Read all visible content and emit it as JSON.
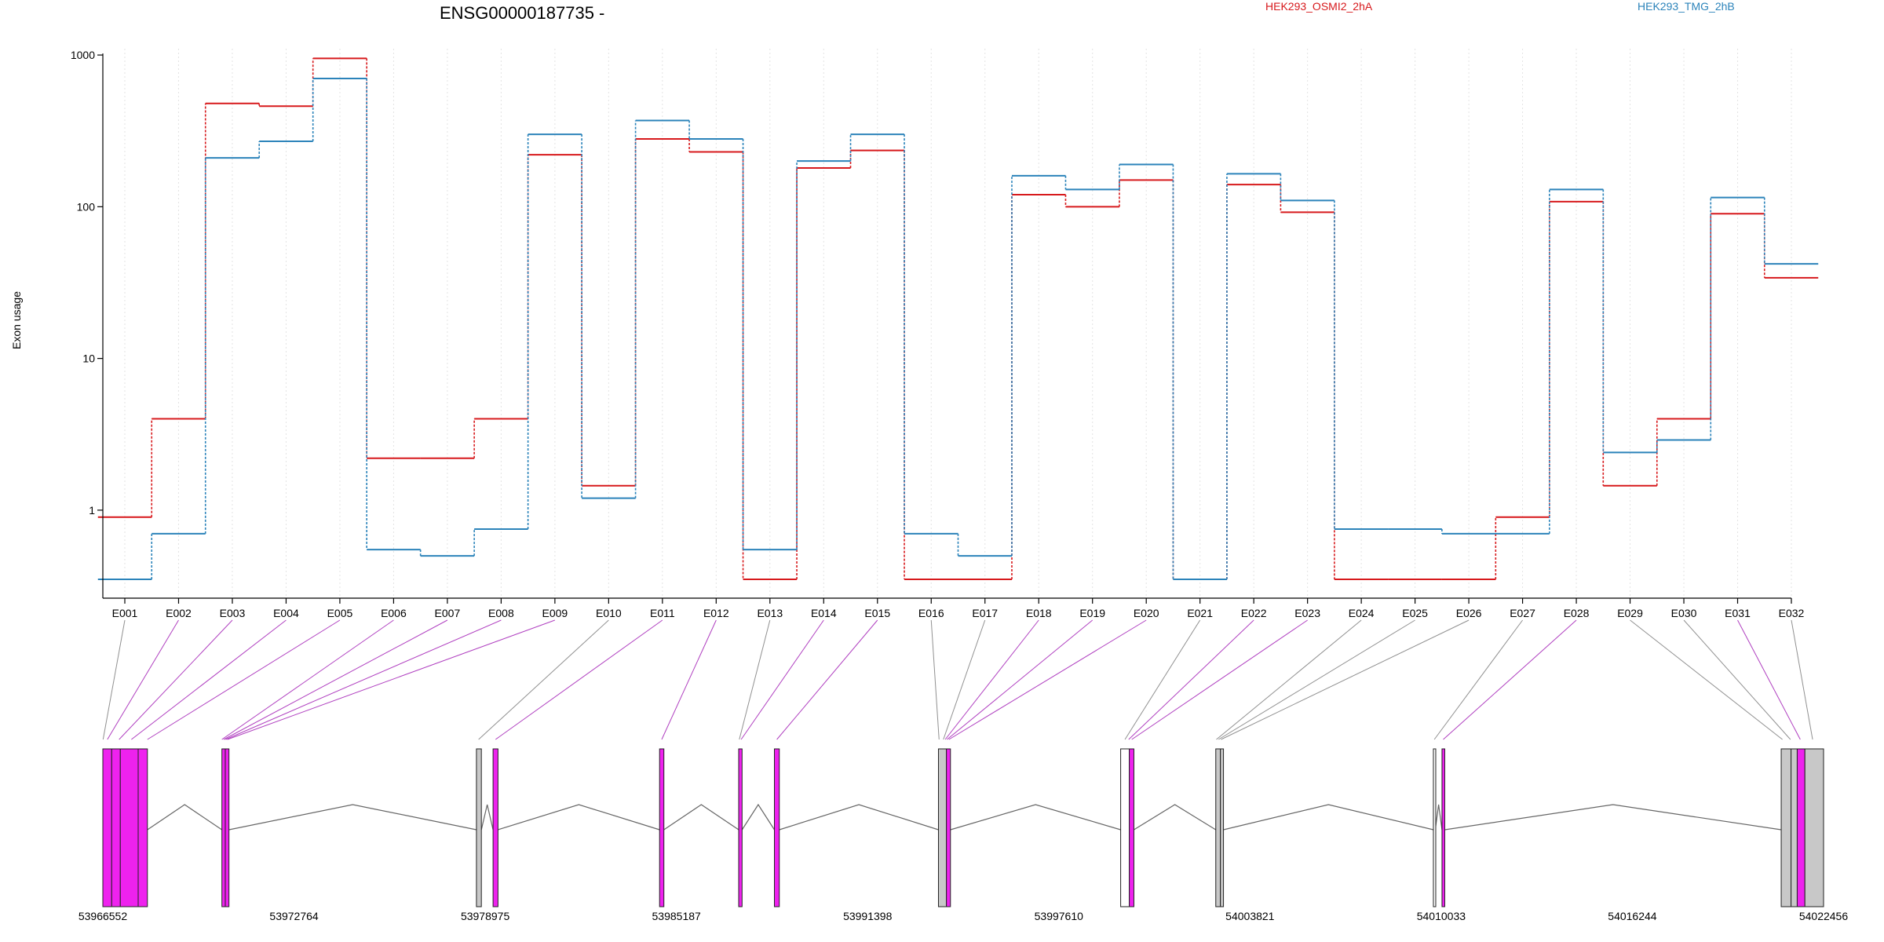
{
  "chart_data": {
    "type": "line",
    "title": "ENSG00000187735 -",
    "ylabel": "Exon usage",
    "xlabel": "",
    "y_scale": "log",
    "yticks": [
      1,
      10,
      100,
      1000
    ],
    "ytick_labels": [
      "1",
      "10",
      "100",
      "1000"
    ],
    "ylim": [
      0.35,
      1050
    ],
    "grid": "vertical dotted gridlines at each exon",
    "legend_position": "top",
    "categories": [
      "E001",
      "E002",
      "E003",
      "E004",
      "E005",
      "E006",
      "E007",
      "E008",
      "E009",
      "E010",
      "E011",
      "E012",
      "E013",
      "E014",
      "E015",
      "E016",
      "E017",
      "E018",
      "E019",
      "E020",
      "E021",
      "E022",
      "E023",
      "E024",
      "E025",
      "E026",
      "E027",
      "E028",
      "E029",
      "E030",
      "E031",
      "E032"
    ],
    "series": [
      {
        "name": "HEK293_OSMI2_2hA",
        "color": "#d7191c",
        "values": [
          0.9,
          4.0,
          480,
          460,
          950,
          2.2,
          2.2,
          4.0,
          220,
          1.45,
          280,
          230,
          0.35,
          180,
          235,
          0.35,
          0.35,
          120,
          100,
          150,
          0.35,
          140,
          92,
          0.35,
          0.35,
          0.35,
          0.9,
          108,
          1.45,
          4.0,
          90,
          34
        ]
      },
      {
        "name": "HEK293_TMG_2hB",
        "color": "#2b83ba",
        "values": [
          0.35,
          0.7,
          210,
          270,
          700,
          0.55,
          0.5,
          0.75,
          300,
          1.2,
          370,
          280,
          0.55,
          200,
          300,
          0.7,
          0.5,
          160,
          130,
          190,
          0.35,
          165,
          110,
          0.75,
          0.75,
          0.7,
          0.7,
          130,
          2.4,
          2.9,
          115,
          42
        ]
      }
    ],
    "genomic_axis": {
      "tick_labels": [
        "53966552",
        "53972764",
        "53978975",
        "53985187",
        "53991398",
        "53997610",
        "54003821",
        "54010033",
        "54016244",
        "54022456"
      ],
      "start": 53966552,
      "end": 54022456
    },
    "gene_model": {
      "exons": [
        {
          "start": 53966552,
          "end": 53966840,
          "kind": "magenta"
        },
        {
          "start": 53966840,
          "end": 53967120,
          "kind": "magenta"
        },
        {
          "start": 53967120,
          "end": 53967700,
          "kind": "magenta"
        },
        {
          "start": 53967700,
          "end": 53968000,
          "kind": "magenta"
        },
        {
          "start": 53970420,
          "end": 53970530,
          "kind": "magenta"
        },
        {
          "start": 53970530,
          "end": 53970650,
          "kind": "magenta"
        },
        {
          "start": 53978690,
          "end": 53978850,
          "kind": "grey"
        },
        {
          "start": 53979230,
          "end": 53979390,
          "kind": "magenta"
        },
        {
          "start": 53984640,
          "end": 53984780,
          "kind": "magenta"
        },
        {
          "start": 53987210,
          "end": 53987320,
          "kind": "magenta"
        },
        {
          "start": 53988370,
          "end": 53988530,
          "kind": "magenta"
        },
        {
          "start": 53993700,
          "end": 53993960,
          "kind": "grey"
        },
        {
          "start": 53993960,
          "end": 53994090,
          "kind": "magenta"
        },
        {
          "start": 53999620,
          "end": 53999900,
          "kind": "open"
        },
        {
          "start": 53999900,
          "end": 54000050,
          "kind": "magenta"
        },
        {
          "start": 54002710,
          "end": 54002860,
          "kind": "grey"
        },
        {
          "start": 54002860,
          "end": 54002960,
          "kind": "grey"
        },
        {
          "start": 54009780,
          "end": 54009840,
          "kind": "open"
        },
        {
          "start": 54010060,
          "end": 54010150,
          "kind": "magenta"
        },
        {
          "start": 54021080,
          "end": 54021400,
          "kind": "grey"
        },
        {
          "start": 54021400,
          "end": 54021600,
          "kind": "grey"
        },
        {
          "start": 54021600,
          "end": 54021850,
          "kind": "magenta"
        },
        {
          "start": 54021850,
          "end": 54022456,
          "kind": "grey"
        }
      ],
      "exon_links": [
        {
          "exon": "E001",
          "pos": 53966560,
          "kind": "grey"
        },
        {
          "exon": "E002",
          "pos": 53966700,
          "kind": "magenta"
        },
        {
          "exon": "E003",
          "pos": 53967080,
          "kind": "magenta"
        },
        {
          "exon": "E004",
          "pos": 53967480,
          "kind": "magenta"
        },
        {
          "exon": "E005",
          "pos": 53968000,
          "kind": "magenta"
        },
        {
          "exon": "E006",
          "pos": 53970420,
          "kind": "magenta"
        },
        {
          "exon": "E007",
          "pos": 53970480,
          "kind": "magenta"
        },
        {
          "exon": "E008",
          "pos": 53970540,
          "kind": "magenta"
        },
        {
          "exon": "E009",
          "pos": 53970600,
          "kind": "magenta"
        },
        {
          "exon": "E010",
          "pos": 53978760,
          "kind": "grey"
        },
        {
          "exon": "E011",
          "pos": 53979310,
          "kind": "magenta"
        },
        {
          "exon": "E012",
          "pos": 53984710,
          "kind": "magenta"
        },
        {
          "exon": "E013",
          "pos": 53987230,
          "kind": "grey"
        },
        {
          "exon": "E014",
          "pos": 53987290,
          "kind": "magenta"
        },
        {
          "exon": "E015",
          "pos": 53988450,
          "kind": "magenta"
        },
        {
          "exon": "E016",
          "pos": 53993720,
          "kind": "grey"
        },
        {
          "exon": "E017",
          "pos": 53993860,
          "kind": "grey"
        },
        {
          "exon": "E018",
          "pos": 53993920,
          "kind": "magenta"
        },
        {
          "exon": "E019",
          "pos": 53993980,
          "kind": "magenta"
        },
        {
          "exon": "E020",
          "pos": 53994040,
          "kind": "magenta"
        },
        {
          "exon": "E021",
          "pos": 53999760,
          "kind": "grey"
        },
        {
          "exon": "E022",
          "pos": 53999880,
          "kind": "magenta"
        },
        {
          "exon": "E023",
          "pos": 53999980,
          "kind": "magenta"
        },
        {
          "exon": "E024",
          "pos": 54002730,
          "kind": "grey"
        },
        {
          "exon": "E025",
          "pos": 54002800,
          "kind": "grey"
        },
        {
          "exon": "E026",
          "pos": 54002880,
          "kind": "grey"
        },
        {
          "exon": "E027",
          "pos": 54009810,
          "kind": "grey"
        },
        {
          "exon": "E028",
          "pos": 54010100,
          "kind": "magenta"
        },
        {
          "exon": "E029",
          "pos": 54021120,
          "kind": "grey"
        },
        {
          "exon": "E030",
          "pos": 54021380,
          "kind": "grey"
        },
        {
          "exon": "E031",
          "pos": 54021700,
          "kind": "magenta"
        },
        {
          "exon": "E032",
          "pos": 54022100,
          "kind": "grey"
        }
      ]
    },
    "colors": {
      "magenta": "#ee22ee",
      "grey_exon": "#c8c8c8",
      "link_magenta": "#b040c0",
      "link_grey": "#909090"
    }
  }
}
